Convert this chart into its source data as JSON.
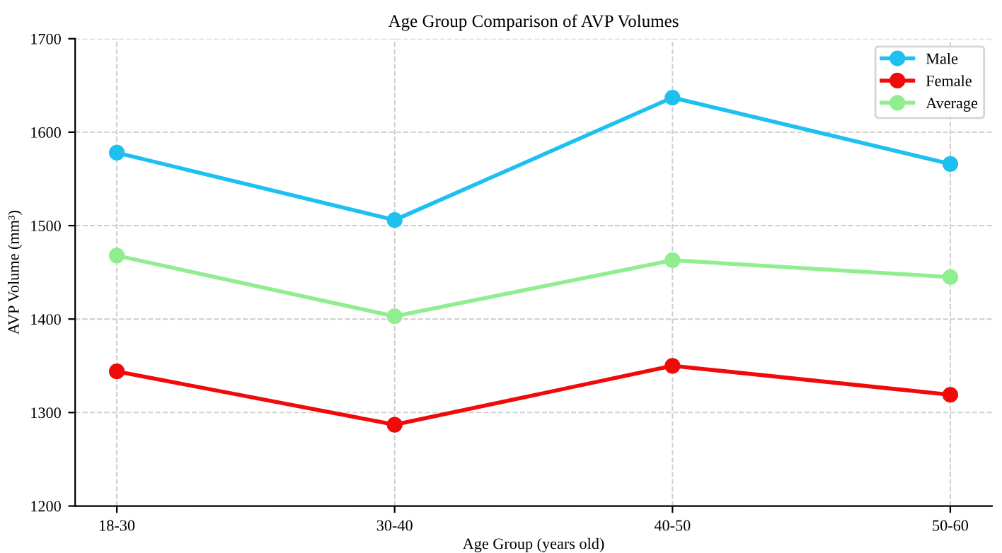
{
  "chart_data": {
    "type": "line",
    "title": "Age Group Comparison of AVP Volumes",
    "xlabel": "Age Group (years old)",
    "ylabel": "AVP Volume (mm³)",
    "categories": [
      "18-30",
      "30-40",
      "40-50",
      "50-60"
    ],
    "series": [
      {
        "name": "Male",
        "color": "#1ec0f0",
        "values": [
          1578,
          1506,
          1637,
          1566
        ]
      },
      {
        "name": "Female",
        "color": "#f00a0a",
        "values": [
          1344,
          1287,
          1350,
          1319
        ]
      },
      {
        "name": "Average",
        "color": "#90ee90",
        "values": [
          1468,
          1403,
          1463,
          1445
        ]
      }
    ],
    "ylim": [
      1200,
      1700
    ],
    "yticks": [
      1200,
      1300,
      1400,
      1500,
      1600,
      1700
    ],
    "grid": true,
    "legend": "top right",
    "marker": "circle",
    "line_style": "solid"
  }
}
